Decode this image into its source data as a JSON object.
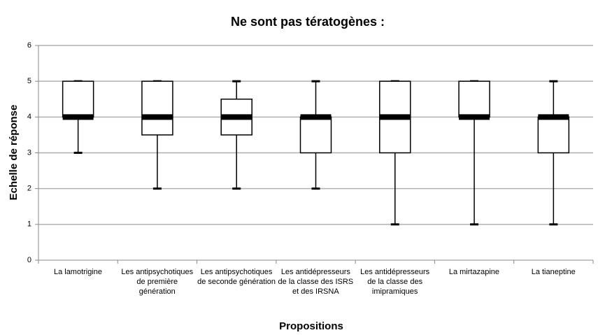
{
  "chart_data": {
    "type": "box",
    "title": "Ne sont pas tératogènes :",
    "xlabel": "Propositions",
    "ylabel": "Echelle de réponse",
    "categories": [
      "La lamotrigine",
      "Les antipsychotiques de première génération",
      "Les antipsychotiques de seconde génération",
      "Les antidépresseurs de la classe des ISRS et des IRSNA",
      "Les antidépresseurs de la classe des imipramiques",
      "La mirtazapine",
      "La tianeptine"
    ],
    "boxes": [
      {
        "min": 3,
        "q1": 4,
        "median": 4,
        "q3": 5,
        "max": 5
      },
      {
        "min": 2,
        "q1": 3.5,
        "median": 4,
        "q3": 5,
        "max": 5
      },
      {
        "min": 2,
        "q1": 3.5,
        "median": 4,
        "q3": 4.5,
        "max": 5
      },
      {
        "min": 2,
        "q1": 3,
        "median": 4,
        "q3": 4,
        "max": 5
      },
      {
        "min": 1,
        "q1": 3,
        "median": 4,
        "q3": 5,
        "max": 5
      },
      {
        "min": 1,
        "q1": 4,
        "median": 4,
        "q3": 5,
        "max": 5
      },
      {
        "min": 1,
        "q1": 3,
        "median": 4,
        "q3": 4,
        "max": 5
      }
    ],
    "color": "#000000",
    "ylim": [
      0,
      6
    ],
    "yticks": [
      0,
      1,
      2,
      3,
      4,
      5,
      6
    ],
    "grid": true
  }
}
